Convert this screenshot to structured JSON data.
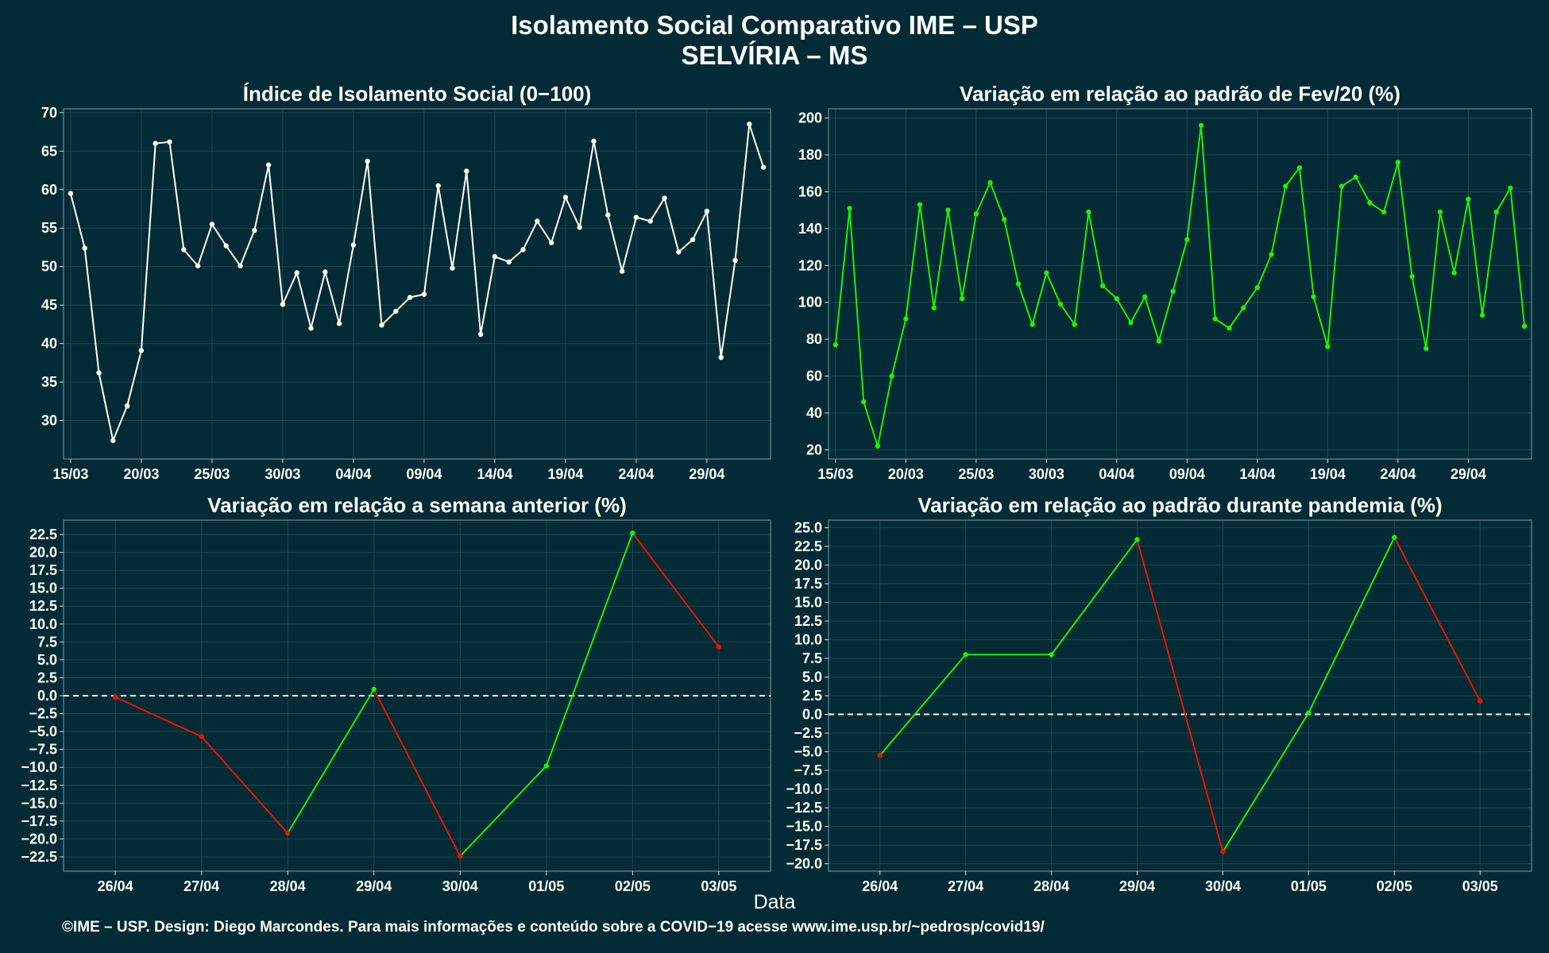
{
  "title": "Isolamento Social Comparativo IME – USP",
  "subtitle": "SELVÍRIA – MS",
  "xlabel": "Data",
  "footer": "©IME – USP. Design: Diego Marcondes. Para mais informações e conteúdo sobre a COVID−19 acesse www.ime.usp.br/~pedrosp/covid19/",
  "colors": {
    "background": "#022b36",
    "line_white": "#ffffff",
    "line_green": "#22ee00",
    "line_red": "#ee1100",
    "grid": "#1c4650"
  },
  "chart_data": [
    {
      "type": "line",
      "title": "Índice de Isolamento Social (0−100)",
      "x_tick_labels": [
        "15/03",
        "20/03",
        "25/03",
        "30/03",
        "04/04",
        "09/04",
        "14/04",
        "19/04",
        "24/04",
        "29/04"
      ],
      "y_ticks": [
        "30",
        "35",
        "40",
        "45",
        "50",
        "55",
        "60",
        "65",
        "70"
      ],
      "ylim": [
        25,
        70.5
      ],
      "x_start": "15/03",
      "series": [
        {
          "values": [
            59.5,
            52.4,
            36.2,
            27.4,
            31.9,
            39.1,
            66.0,
            66.2,
            52.2,
            50.1,
            55.5,
            52.7,
            50.1,
            54.7,
            63.2,
            45.1,
            49.2,
            42.0,
            49.3,
            42.6,
            52.8,
            63.7,
            42.4,
            44.2,
            46.0,
            46.4,
            60.5,
            49.8,
            62.4,
            41.2,
            51.3,
            50.6,
            52.2,
            55.9,
            53.1,
            59.0,
            55.1,
            66.3,
            56.7,
            49.4,
            56.4,
            55.9,
            58.9,
            51.9,
            53.5,
            57.2,
            38.2,
            50.8,
            68.5,
            62.9
          ],
          "color": "#ffffff"
        }
      ],
      "grid": true
    },
    {
      "type": "line",
      "title": "Variação em relação ao padrão de Fev/20 (%)",
      "x_tick_labels": [
        "15/03",
        "20/03",
        "25/03",
        "30/03",
        "04/04",
        "09/04",
        "14/04",
        "19/04",
        "24/04",
        "29/04"
      ],
      "y_ticks": [
        "20",
        "40",
        "60",
        "80",
        "100",
        "120",
        "140",
        "160",
        "180",
        "200"
      ],
      "ylim": [
        15,
        205
      ],
      "x_start": "15/03",
      "series": [
        {
          "values": [
            77,
            151,
            46,
            22,
            60,
            91,
            153,
            97,
            150,
            102,
            148,
            165,
            145,
            110,
            88,
            116,
            99,
            88,
            149,
            109,
            102,
            89,
            103,
            79,
            106,
            134,
            196,
            91,
            86,
            97,
            108,
            126,
            163,
            173,
            103,
            76,
            163,
            168,
            154,
            149,
            176,
            114,
            75,
            149,
            116,
            156,
            93,
            149,
            162,
            87
          ],
          "color": "#22ee00"
        }
      ],
      "grid": true
    },
    {
      "type": "line",
      "title": "Variação em relação a semana anterior (%)",
      "categories": [
        "26/04",
        "27/04",
        "28/04",
        "29/04",
        "30/04",
        "01/05",
        "02/05",
        "03/05"
      ],
      "y_ticks": [
        "−22.5",
        "−20.0",
        "−17.5",
        "−15.0",
        "−12.5",
        "−10.0",
        "−7.5",
        "−5.0",
        "−2.5",
        "0.0",
        "2.5",
        "5.0",
        "7.5",
        "10.0",
        "12.5",
        "15.0",
        "17.5",
        "20.0",
        "22.5"
      ],
      "ylim": [
        -24.5,
        24.5
      ],
      "series": [
        {
          "values": [
            -0.2,
            -5.7,
            -19.2,
            0.9,
            -22.4,
            -9.8,
            22.7,
            6.8
          ]
        }
      ],
      "reference_line": 0,
      "color_rule": "green if rising, red if falling",
      "grid": true
    },
    {
      "type": "line",
      "title": "Variação em relação ao padrão durante pandemia (%)",
      "categories": [
        "26/04",
        "27/04",
        "28/04",
        "29/04",
        "30/04",
        "01/05",
        "02/05",
        "03/05"
      ],
      "y_ticks": [
        "−20.0",
        "−17.5",
        "−15.0",
        "−12.5",
        "−10.0",
        "−7.5",
        "−5.0",
        "−2.5",
        "0.0",
        "2.5",
        "5.0",
        "7.5",
        "10.0",
        "12.5",
        "15.0",
        "17.5",
        "20.0",
        "22.5",
        "25.0"
      ],
      "ylim": [
        -21,
        26
      ],
      "series": [
        {
          "values": [
            -5.5,
            8.0,
            8.0,
            23.4,
            -18.4,
            0.2,
            23.7,
            1.8
          ]
        }
      ],
      "reference_line": 0,
      "color_rule": "green if rising, red if falling",
      "grid": true
    }
  ]
}
